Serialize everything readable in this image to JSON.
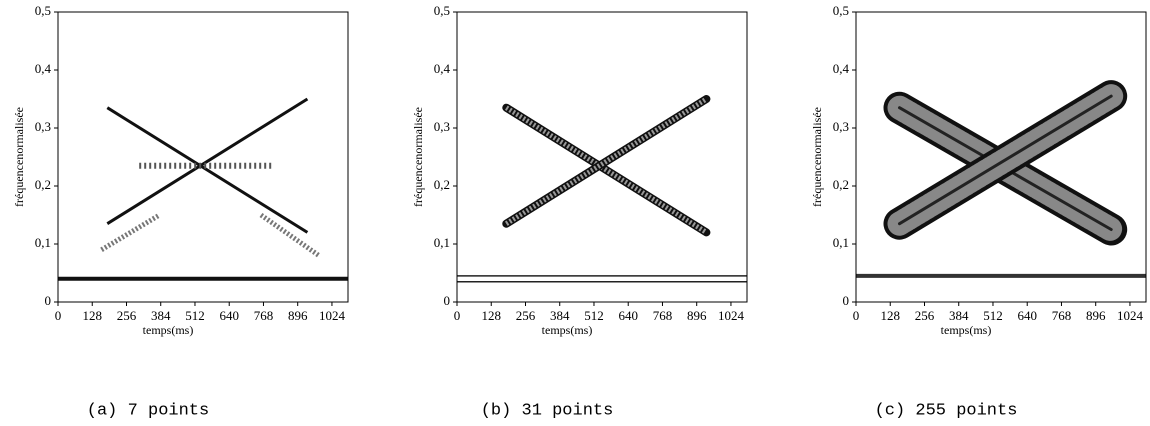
{
  "chart_data": [
    {
      "type": "image",
      "caption": "(a) 7 points",
      "xlabel": "temps(ms)",
      "ylabel": "fréquencenormalisée",
      "xlim": [
        0,
        1084
      ],
      "ylim": [
        0,
        0.5
      ],
      "xticks": [
        0,
        128,
        256,
        384,
        512,
        640,
        768,
        896,
        1024
      ],
      "yticks": [
        0,
        {
          "value": 0.1,
          "label": "0,1"
        },
        {
          "value": 0.2,
          "label": "0,2"
        },
        {
          "value": 0.3,
          "label": "0,3"
        },
        {
          "value": 0.4,
          "label": "0,4"
        },
        {
          "value": 0.5,
          "label": "0,5"
        }
      ]
    },
    {
      "type": "image",
      "caption": "(b) 31 points",
      "xlabel": "temps(ms)",
      "ylabel": "fréquencenormalisée",
      "xlim": [
        0,
        1084
      ],
      "ylim": [
        0,
        0.5
      ],
      "xticks": [
        0,
        128,
        256,
        384,
        512,
        640,
        768,
        896,
        1024
      ],
      "yticks": [
        0,
        {
          "value": 0.1,
          "label": "0,1"
        },
        {
          "value": 0.2,
          "label": "0,2"
        },
        {
          "value": 0.3,
          "label": "0,3"
        },
        {
          "value": 0.4,
          "label": "0,4"
        },
        {
          "value": 0.5,
          "label": "0,5"
        }
      ]
    },
    {
      "type": "image",
      "caption": "(c) 255 points",
      "xlabel": "temps(ms)",
      "ylabel": "fréquencenormalisée",
      "xlim": [
        0,
        1084
      ],
      "ylim": [
        0,
        0.5
      ],
      "xticks": [
        0,
        128,
        256,
        384,
        512,
        640,
        768,
        896,
        1024
      ],
      "yticks": [
        0,
        {
          "value": 0.1,
          "label": "0,1"
        },
        {
          "value": 0.2,
          "label": "0,2"
        },
        {
          "value": 0.3,
          "label": "0,3"
        },
        {
          "value": 0.4,
          "label": "0,4"
        },
        {
          "value": 0.5,
          "label": "0,5"
        }
      ]
    }
  ]
}
